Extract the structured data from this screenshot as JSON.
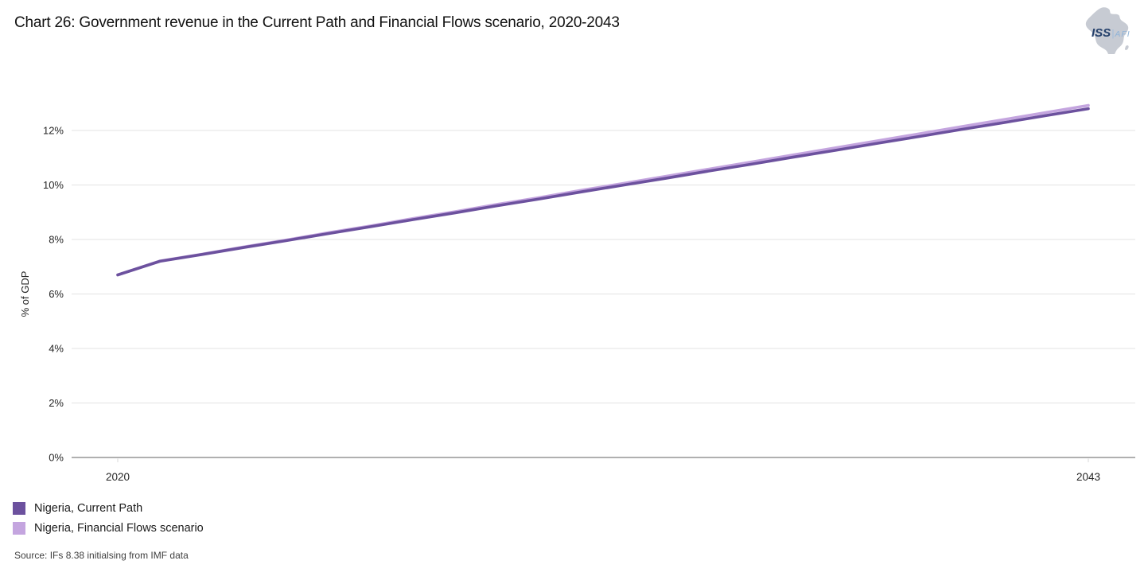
{
  "title": "Chart 26: Government revenue in the Current Path and Financial Flows scenario, 2020-2043",
  "logo": {
    "iss": "ISS",
    "separator": "|",
    "afi": "AFI",
    "map_color": "#C7CBD3"
  },
  "chart_data": {
    "type": "line",
    "title": "Chart 26: Government revenue in the Current Path and Financial Flows scenario, 2020-2043",
    "xlabel": "",
    "ylabel": "% of GDP",
    "ylim": [
      0,
      13
    ],
    "grid": "horizontal",
    "legend_position": "bottom-left",
    "yticks": [
      "0%",
      "2%",
      "4%",
      "6%",
      "8%",
      "10%",
      "12%"
    ],
    "xticks": [
      2020,
      2043
    ],
    "grid_color": "#E3E3E3",
    "axis_color": "#808080",
    "tick_color": "#D9D9D9",
    "text_color": "#262626",
    "x": [
      2020,
      2021,
      2022,
      2023,
      2024,
      2025,
      2026,
      2027,
      2028,
      2029,
      2030,
      2031,
      2032,
      2033,
      2034,
      2035,
      2036,
      2037,
      2038,
      2039,
      2040,
      2041,
      2042,
      2043
    ],
    "series": [
      {
        "name": "Nigeria, Current Path",
        "color": "#6C519E",
        "values": [
          6.7,
          7.2,
          7.45,
          7.71,
          7.96,
          8.22,
          8.47,
          8.73,
          8.98,
          9.24,
          9.49,
          9.75,
          10.0,
          10.25,
          10.51,
          10.76,
          11.02,
          11.27,
          11.53,
          11.78,
          12.04,
          12.29,
          12.55,
          12.8
        ]
      },
      {
        "name": "Nigeria, Financial Flows scenario",
        "color": "#C4A5DF",
        "values": [
          6.7,
          7.21,
          7.46,
          7.73,
          7.98,
          8.25,
          8.5,
          8.77,
          9.02,
          9.29,
          9.54,
          9.81,
          10.06,
          10.32,
          10.58,
          10.84,
          11.1,
          11.36,
          11.62,
          11.88,
          12.14,
          12.4,
          12.66,
          12.92
        ]
      }
    ]
  },
  "legend": {
    "items": [
      {
        "label": "Nigeria, Current Path",
        "color": "#6C519E"
      },
      {
        "label": "Nigeria, Financial Flows scenario",
        "color": "#C4A5DF"
      }
    ]
  },
  "source": "Source: IFs 8.38 initialsing from IMF data"
}
